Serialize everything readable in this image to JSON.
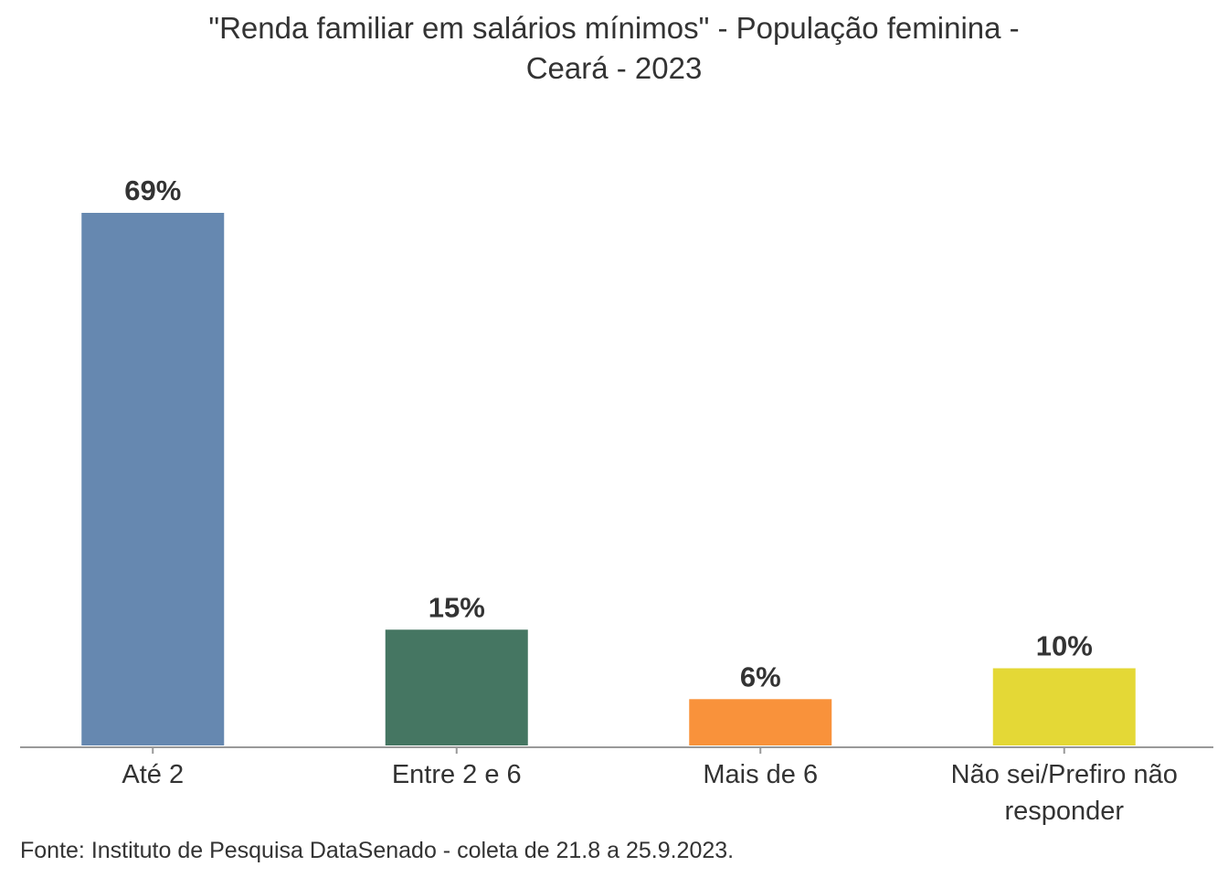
{
  "chart_data": {
    "type": "bar",
    "title_lines": [
      "\"Renda familiar em salários mínimos\" - População feminina -",
      "Ceará - 2023"
    ],
    "categories": [
      [
        "Até 2"
      ],
      [
        "Entre 2 e 6"
      ],
      [
        "Mais de 6"
      ],
      [
        "Não sei/Prefiro não",
        "responder"
      ]
    ],
    "values": [
      69,
      15,
      6,
      10
    ],
    "value_labels": [
      "69%",
      "15%",
      "6%",
      "10%"
    ],
    "colors": [
      "#6688b0",
      "#457662",
      "#f9923b",
      "#e4d836"
    ],
    "xlabel": "",
    "ylabel": "",
    "ylim": [
      0,
      69
    ],
    "grid": false,
    "legend": "none",
    "source": "Fonte: Instituto de Pesquisa DataSenado - coleta de 21.8 a 25.9.2023."
  }
}
